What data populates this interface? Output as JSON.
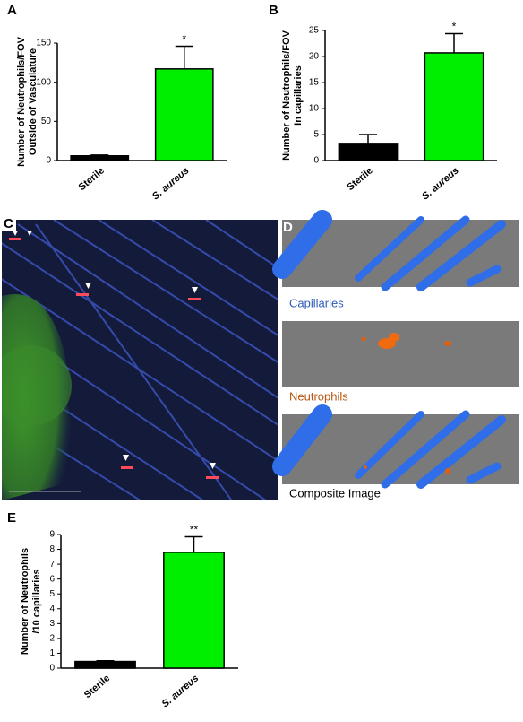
{
  "chart_data": [
    {
      "type": "bar",
      "panel_label": "A",
      "ylabel": [
        "Number of Neutrophils/FOV",
        "Outside of Vasculature"
      ],
      "categories": [
        "Sterile",
        "S. aureus"
      ],
      "values": [
        6,
        117
      ],
      "errors": [
        1,
        29
      ],
      "colors": [
        "#000000",
        "#00ee00"
      ],
      "annotations": [
        null,
        "*"
      ],
      "ylim": [
        0,
        150
      ],
      "yticks": [
        0,
        50,
        100,
        150
      ]
    },
    {
      "type": "bar",
      "panel_label": "B",
      "ylabel": [
        "Number of Neutrophils/FOV",
        "In capillaries"
      ],
      "categories": [
        "Sterile",
        "S. aureus"
      ],
      "values": [
        3.3,
        20.7
      ],
      "errors": [
        1.7,
        3.7
      ],
      "colors": [
        "#000000",
        "#00ee00"
      ],
      "annotations": [
        null,
        "*"
      ],
      "ylim": [
        0,
        25
      ],
      "yticks": [
        0,
        5,
        10,
        15,
        20,
        25
      ]
    },
    {
      "type": "bar",
      "panel_label": "E",
      "ylabel": [
        "Number of Neutrophils",
        "/10 capillaries"
      ],
      "categories": [
        "Sterile",
        "S. aureus"
      ],
      "values": [
        0.45,
        7.8
      ],
      "errors": [
        0.05,
        1.05
      ],
      "colors": [
        "#000000",
        "#00ee00"
      ],
      "annotations": [
        null,
        "**"
      ],
      "ylim": [
        0,
        9
      ],
      "yticks": [
        0,
        1,
        2,
        3,
        4,
        5,
        6,
        7,
        8,
        9
      ]
    }
  ],
  "image_panels": {
    "c": {
      "label": "C"
    },
    "d": {
      "label": "D",
      "captions": [
        "Capillaries",
        "Neutrophils",
        "Composite Image"
      ]
    }
  }
}
